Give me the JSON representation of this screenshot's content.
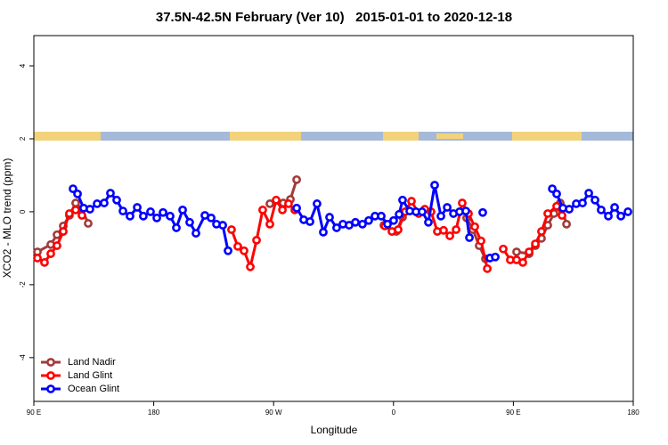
{
  "chart_data": {
    "type": "line",
    "title": "37.5N-42.5N February (Ver 10)   2015-01-01 to 2020-12-18",
    "xlabel": "Longitude",
    "ylabel": "XCO2 - MLO trend (ppm)",
    "xlim": [
      90,
      540
    ],
    "ylim": [
      -5.2,
      4.83
    ],
    "xticks": [
      {
        "value": 90,
        "label": "90 E"
      },
      {
        "value": 180,
        "label": "180"
      },
      {
        "value": 270,
        "label": "90 W"
      },
      {
        "value": 360,
        "label": "0"
      },
      {
        "value": 450,
        "label": "90 E"
      },
      {
        "value": 540,
        "label": "180"
      }
    ],
    "yticks": [
      -4,
      -2,
      0,
      2,
      4
    ],
    "legend": "lower left",
    "series": [
      {
        "name": "Land Nadir",
        "color": "#a33a3a",
        "x": [
          92.7,
          102.7,
          107.4,
          112.1,
          116.7,
          121.4,
          126.1,
          130.8,
          null,
          267.2,
          277.2,
          282.6,
          287.3,
          null,
          352.8,
          362.1,
          366.8,
          null,
          414.9,
          419.6,
          424.3,
          429.0,
          null,
          452.4,
          461.8,
          466.5,
          471.1,
          475.8,
          480.5,
          485.2,
          489.9
        ],
        "values": [
          -1.1,
          -0.9,
          -0.63,
          -0.39,
          -0.1,
          0.24,
          0.07,
          -0.32,
          null,
          0.22,
          0.24,
          0.34,
          0.88,
          null,
          -0.37,
          -0.54,
          -0.15,
          null,
          -0.17,
          -0.49,
          -0.93,
          -1.29,
          null,
          -1.1,
          -1.15,
          -0.93,
          -0.73,
          -0.37,
          -0.05,
          0.24,
          -0.34
        ]
      },
      {
        "name": "Land Glint",
        "color": "#ff0000",
        "x": [
          92.7,
          98.0,
          102.7,
          107.4,
          112.1,
          116.7,
          121.4,
          126.1,
          null,
          238.4,
          243.1,
          247.8,
          252.5,
          257.2,
          261.8,
          267.2,
          271.9,
          276.6,
          281.2,
          285.9,
          null,
          353.5,
          358.8,
          363.5,
          368.8,
          373.5,
          378.9,
          383.5,
          388.2,
          392.9,
          397.6,
          402.3,
          407.0,
          411.6,
          416.3,
          421.0,
          425.7,
          430.4,
          null,
          442.4,
          447.7,
          452.4,
          457.1,
          461.8,
          466.5,
          471.1,
          475.8,
          482.5,
          486.5
        ],
        "values": [
          -1.27,
          -1.39,
          -1.15,
          -0.93,
          -0.54,
          -0.05,
          0.05,
          -0.1,
          null,
          -0.49,
          -0.95,
          -1.07,
          -1.51,
          -0.78,
          0.05,
          -0.34,
          0.32,
          0.05,
          0.22,
          0.05,
          null,
          -0.39,
          -0.54,
          -0.49,
          0.0,
          0.29,
          -0.05,
          0.07,
          0.0,
          -0.54,
          -0.51,
          -0.66,
          -0.49,
          0.24,
          -0.05,
          -0.41,
          -0.8,
          -1.56,
          null,
          -1.02,
          -1.32,
          -1.32,
          -1.39,
          -1.1,
          -0.88,
          -0.54,
          -0.05,
          0.15,
          -0.1
        ]
      },
      {
        "name": "Ocean Glint",
        "color": "#0000ff",
        "x": [
          119.4,
          122.8,
          127.4,
          132.1,
          137.5,
          142.8,
          147.5,
          152.2,
          156.9,
          162.2,
          167.6,
          172.2,
          177.6,
          182.3,
          187.0,
          192.3,
          197.0,
          201.7,
          207.0,
          211.7,
          218.4,
          223.1,
          227.1,
          231.8,
          235.8,
          null,
          287.3,
          292.6,
          297.3,
          302.6,
          307.3,
          312.0,
          317.3,
          322.0,
          326.7,
          331.4,
          336.7,
          341.4,
          346.1,
          350.8,
          355.5,
          360.1,
          364.2,
          366.8,
          372.2,
          376.9,
          381.5,
          386.2,
          390.9,
          395.6,
          400.3,
          405.0,
          409.6,
          414.3,
          417.0,
          null,
          427.0,
          null,
          432.4,
          436.4,
          null,
          479.2,
          482.5,
          487.2,
          491.9,
          497.2,
          501.9,
          506.6,
          511.3,
          515.9,
          521.3,
          526.0,
          530.7,
          536.0
        ],
        "values": [
          0.63,
          0.49,
          0.1,
          0.07,
          0.22,
          0.24,
          0.51,
          0.32,
          0.02,
          -0.12,
          0.12,
          -0.12,
          0.0,
          -0.17,
          -0.02,
          -0.12,
          -0.44,
          0.05,
          -0.29,
          -0.59,
          -0.1,
          -0.17,
          -0.34,
          -0.37,
          -1.07,
          null,
          0.1,
          -0.22,
          -0.27,
          0.22,
          -0.56,
          -0.15,
          -0.44,
          -0.34,
          -0.37,
          -0.29,
          -0.34,
          -0.24,
          -0.12,
          -0.12,
          -0.34,
          -0.24,
          -0.07,
          0.32,
          0.02,
          0.0,
          0.0,
          -0.29,
          0.73,
          -0.12,
          0.12,
          -0.05,
          0.0,
          0.02,
          -0.71,
          null,
          -0.02,
          null,
          -1.27,
          -1.24,
          null,
          0.63,
          0.49,
          0.1,
          0.07,
          0.22,
          0.24,
          0.51,
          0.32,
          0.05,
          -0.12,
          0.12,
          -0.12,
          0.0
        ]
      }
    ]
  }
}
